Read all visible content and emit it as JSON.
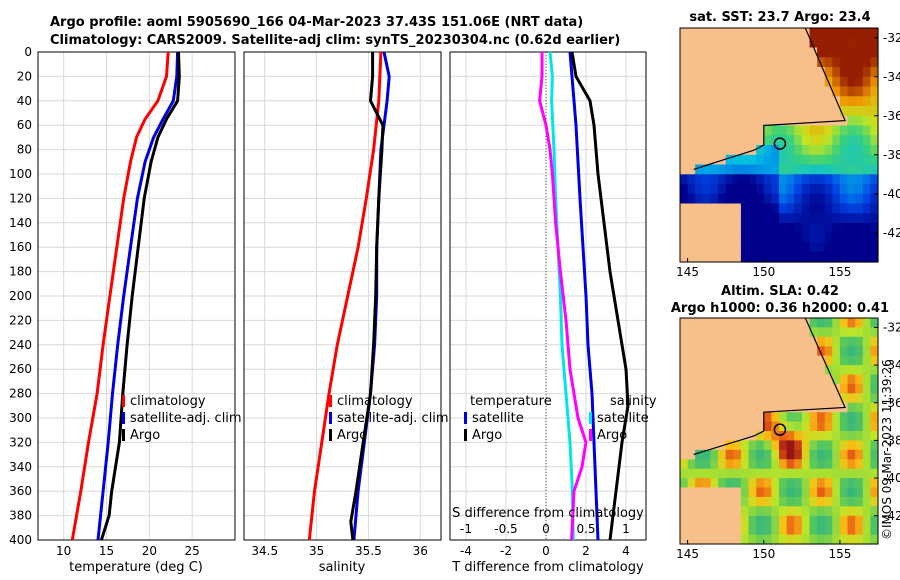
{
  "titles": {
    "line1": "Argo profile: aoml 5905690_166 04-Mar-2023 37.43S 151.06E (NRT data)",
    "line2": "Climatology: CARS2009. Satellite-adj clim: synTS_20230304.nc (0.62d earlier)",
    "sst_map": "sat. SST: 23.7 Argo: 23.4",
    "sla_map_line1": "Altim. SLA: 0.42",
    "sla_map_line2": "Argo h1000: 0.36 h2000: 0.41"
  },
  "stamp": "©IMOS 09-Mar-2023 11:39:26",
  "colors": {
    "climatology": "#ff0000",
    "satellite": "#0000dd",
    "argo": "#000000",
    "salinity_satellite": "#00e6e6",
    "salinity_argo": "#ff00ff",
    "land": "#f7c08a",
    "grid": "#d9d9d9"
  },
  "chart_data": [
    {
      "type": "line",
      "name": "temperature-profile",
      "xlabel": "temperature (deg C)",
      "ylabel": "",
      "xlim": [
        7,
        30
      ],
      "ylim": [
        400,
        0
      ],
      "xticks": [
        "10",
        "15",
        "20",
        "25"
      ],
      "yticks": [
        "0",
        "20",
        "40",
        "60",
        "80",
        "100",
        "120",
        "140",
        "160",
        "180",
        "200",
        "220",
        "240",
        "260",
        "280",
        "300",
        "320",
        "340",
        "360",
        "380",
        "400"
      ],
      "legend": [
        "climatology",
        "satellite-adj. clim",
        "Argo"
      ],
      "series": [
        {
          "name": "climatology",
          "points": [
            [
              22.2,
              0
            ],
            [
              22.0,
              20
            ],
            [
              21.0,
              40
            ],
            [
              19.5,
              55
            ],
            [
              18.5,
              70
            ],
            [
              17.8,
              90
            ],
            [
              17.0,
              120
            ],
            [
              16.2,
              160
            ],
            [
              15.4,
              200
            ],
            [
              14.6,
              240
            ],
            [
              13.9,
              280
            ],
            [
              12.9,
              320
            ],
            [
              12.0,
              360
            ],
            [
              11.0,
              400
            ]
          ]
        },
        {
          "name": "satellite-adj. clim",
          "points": [
            [
              23.3,
              0
            ],
            [
              23.2,
              20
            ],
            [
              22.8,
              40
            ],
            [
              21.6,
              55
            ],
            [
              20.5,
              70
            ],
            [
              19.5,
              90
            ],
            [
              18.6,
              120
            ],
            [
              17.8,
              160
            ],
            [
              17.0,
              200
            ],
            [
              16.3,
              240
            ],
            [
              15.7,
              280
            ],
            [
              15.2,
              320
            ],
            [
              14.6,
              360
            ],
            [
              14.0,
              400
            ]
          ]
        },
        {
          "name": "Argo",
          "points": [
            [
              23.4,
              0
            ],
            [
              23.5,
              20
            ],
            [
              23.3,
              40
            ],
            [
              22.0,
              55
            ],
            [
              21.0,
              70
            ],
            [
              20.2,
              90
            ],
            [
              19.4,
              120
            ],
            [
              18.7,
              160
            ],
            [
              18.0,
              200
            ],
            [
              17.4,
              240
            ],
            [
              16.9,
              280
            ],
            [
              16.5,
              320
            ],
            [
              15.6,
              360
            ],
            [
              15.3,
              380
            ],
            [
              14.4,
              400
            ]
          ]
        }
      ]
    },
    {
      "type": "line",
      "name": "salinity-profile",
      "xlabel": "salinity",
      "ylabel": "",
      "xlim": [
        34.3,
        36.2
      ],
      "ylim": [
        400,
        0
      ],
      "xticks": [
        "34.5",
        "35",
        "35.5",
        "36"
      ],
      "legend": [
        "climatology",
        "satellite-adj. clim",
        "Argo"
      ],
      "series": [
        {
          "name": "climatology",
          "points": [
            [
              35.62,
              0
            ],
            [
              35.6,
              40
            ],
            [
              35.55,
              80
            ],
            [
              35.48,
              120
            ],
            [
              35.4,
              160
            ],
            [
              35.3,
              200
            ],
            [
              35.2,
              240
            ],
            [
              35.12,
              280
            ],
            [
              35.05,
              320
            ],
            [
              34.98,
              360
            ],
            [
              34.93,
              400
            ]
          ]
        },
        {
          "name": "satellite-adj. clim",
          "points": [
            [
              35.65,
              0
            ],
            [
              35.7,
              20
            ],
            [
              35.68,
              40
            ],
            [
              35.62,
              80
            ],
            [
              35.6,
              120
            ],
            [
              35.58,
              160
            ],
            [
              35.58,
              200
            ],
            [
              35.56,
              240
            ],
            [
              35.52,
              280
            ],
            [
              35.46,
              320
            ],
            [
              35.4,
              360
            ],
            [
              35.36,
              400
            ]
          ]
        },
        {
          "name": "Argo",
          "points": [
            [
              35.54,
              0
            ],
            [
              35.54,
              20
            ],
            [
              35.52,
              40
            ],
            [
              35.64,
              60
            ],
            [
              35.63,
              80
            ],
            [
              35.6,
              120
            ],
            [
              35.58,
              160
            ],
            [
              35.57,
              200
            ],
            [
              35.55,
              240
            ],
            [
              35.52,
              280
            ],
            [
              35.45,
              320
            ],
            [
              35.38,
              360
            ],
            [
              35.33,
              385
            ],
            [
              35.35,
              400
            ]
          ]
        }
      ]
    },
    {
      "type": "line",
      "name": "difference-profile",
      "xlabel": "T difference from climatology",
      "top_axis_label": "S difference from climatology",
      "xlim": [
        -4.8,
        5.0
      ],
      "top_xlim": [
        -1.2,
        1.25
      ],
      "ylim": [
        400,
        0
      ],
      "xticks": [
        "-4",
        "-2",
        "0",
        "2",
        "4"
      ],
      "top_xticks": [
        "-1",
        "-0.5",
        "0",
        "0.5",
        "1"
      ],
      "legend_temperature": [
        "temperature",
        "satellite",
        "Argo"
      ],
      "legend_salinity": [
        "salinity",
        "satellite",
        "Argo"
      ],
      "series": [
        {
          "name": "temperature satellite",
          "axis": "T",
          "points": [
            [
              1.2,
              0
            ],
            [
              1.3,
              20
            ],
            [
              1.4,
              40
            ],
            [
              1.5,
              60
            ],
            [
              1.6,
              90
            ],
            [
              1.7,
              120
            ],
            [
              1.85,
              160
            ],
            [
              2.0,
              200
            ],
            [
              2.1,
              240
            ],
            [
              2.3,
              280
            ],
            [
              2.4,
              320
            ],
            [
              2.5,
              360
            ],
            [
              2.6,
              400
            ]
          ]
        },
        {
          "name": "temperature Argo",
          "axis": "T",
          "points": [
            [
              1.3,
              0
            ],
            [
              1.5,
              20
            ],
            [
              2.2,
              40
            ],
            [
              2.4,
              60
            ],
            [
              2.5,
              80
            ],
            [
              2.6,
              100
            ],
            [
              2.9,
              140
            ],
            [
              3.2,
              180
            ],
            [
              3.6,
              220
            ],
            [
              4.0,
              260
            ],
            [
              4.1,
              290
            ],
            [
              3.8,
              320
            ],
            [
              3.5,
              360
            ],
            [
              3.2,
              400
            ]
          ]
        },
        {
          "name": "salinity satellite",
          "axis": "S",
          "points": [
            [
              0.05,
              0
            ],
            [
              0.08,
              20
            ],
            [
              0.07,
              40
            ],
            [
              0.1,
              80
            ],
            [
              0.12,
              120
            ],
            [
              0.15,
              160
            ],
            [
              0.18,
              200
            ],
            [
              0.2,
              240
            ],
            [
              0.25,
              280
            ],
            [
              0.3,
              320
            ],
            [
              0.33,
              360
            ],
            [
              0.34,
              400
            ]
          ]
        },
        {
          "name": "salinity Argo",
          "axis": "S",
          "points": [
            [
              -0.05,
              0
            ],
            [
              -0.05,
              20
            ],
            [
              -0.08,
              40
            ],
            [
              0.0,
              60
            ],
            [
              0.05,
              80
            ],
            [
              0.08,
              100
            ],
            [
              0.12,
              140
            ],
            [
              0.18,
              180
            ],
            [
              0.25,
              220
            ],
            [
              0.3,
              260
            ],
            [
              0.4,
              300
            ],
            [
              0.5,
              320
            ],
            [
              0.45,
              340
            ],
            [
              0.35,
              360
            ],
            [
              0.32,
              400
            ]
          ]
        }
      ]
    },
    {
      "type": "heatmap",
      "name": "sst-map",
      "title": "sat. SST: 23.7 Argo: 23.4",
      "xlim": [
        144.5,
        157.5
      ],
      "ylim": [
        -43.5,
        -31.5
      ],
      "xticks": [
        "145",
        "150",
        "155"
      ],
      "yticks": [
        "-32",
        "-34",
        "-36",
        "-38",
        "-40",
        "-42"
      ],
      "argo_position": {
        "lon": 151.06,
        "lat": -37.43
      }
    },
    {
      "type": "heatmap",
      "name": "sla-map",
      "title": "Altim. SLA: 0.42 / Argo h1000: 0.36 h2000: 0.41",
      "xlim": [
        144.5,
        157.5
      ],
      "ylim": [
        -43.5,
        -31.5
      ],
      "xticks": [
        "145",
        "150",
        "155"
      ],
      "yticks": [
        "-32",
        "-34",
        "-36",
        "-38",
        "-40",
        "-42"
      ],
      "argo_position": {
        "lon": 151.06,
        "lat": -37.43
      }
    }
  ]
}
